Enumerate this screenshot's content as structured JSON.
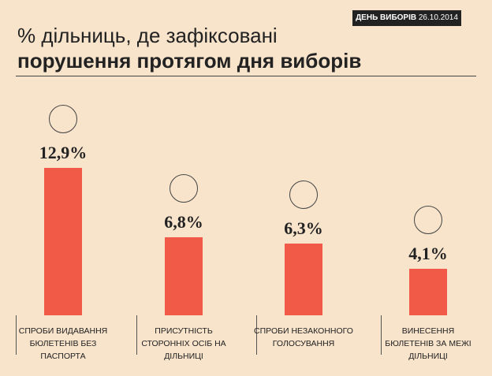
{
  "header": {
    "tag": "ДЕНЬ ВИБОРІВ",
    "date": "26.10.2014"
  },
  "chart_data": {
    "type": "bar",
    "title": "% дільниць, де зафіксовані",
    "subtitle": "порушення протягом дня виборів",
    "categories": [
      "СПРОБИ ВИДАВАННЯ БЮЛЕТЕНІВ БЕЗ ПАСПОРТА",
      "ПРИСУТНІСТЬ СТОРОННІХ ОСІБ НА ДІЛЬНИЦІ",
      "СПРОБИ НЕЗАКОННОГО ГОЛОСУВАННЯ",
      "ВИНЕСЕННЯ БЮЛЕТЕНІВ ЗА МЕЖІ ДІЛЬНИЦІ"
    ],
    "values": [
      12.9,
      6.8,
      6.3,
      4.1
    ],
    "value_labels": [
      "12,9%",
      "6,8%",
      "6,3%",
      "4,1%"
    ],
    "color": "#f05a47"
  }
}
